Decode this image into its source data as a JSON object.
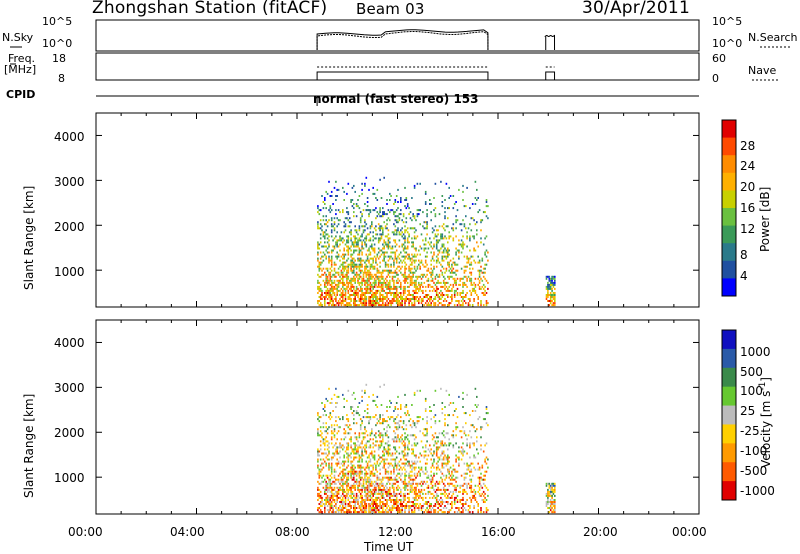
{
  "header": {
    "station": "Zhongshan Station (fitACF)",
    "beam": "Beam 03",
    "date": "30/Apr/2011"
  },
  "status_panels": {
    "nsky_label": "N.Sky",
    "nsearch_label": "N.Search",
    "freq_label_line1": "Freq.",
    "freq_label_line2": "[MHz]",
    "nave_label": "Nave",
    "cpid_label": "CPID",
    "noise_left_ticks": [
      "10^5",
      "10^0"
    ],
    "noise_right_ticks": [
      "10^5",
      "10^0"
    ],
    "freq_left_ticks": [
      "18",
      "8"
    ],
    "freq_right_ticks": [
      "60",
      "0"
    ],
    "cpid_text": "normal (fast stereo) 153"
  },
  "chart_data": [
    {
      "type": "heatmap",
      "name": "power",
      "ylabel": "Slant Range [km]",
      "yticks": [
        "4000",
        "3000",
        "2000",
        "1000"
      ],
      "ylim": [
        180,
        4500
      ],
      "xlim": [
        0,
        24
      ],
      "colorbar": {
        "label": "Power [dB]",
        "ticks": [
          "28",
          "24",
          "20",
          "16",
          "12",
          "8",
          "4"
        ],
        "colors": [
          "#e00000",
          "#ff4a00",
          "#ff8c00",
          "#ffb000",
          "#c8d000",
          "#6ac040",
          "#3a9a58",
          "#2a7a8a",
          "#2050a0",
          "#0000ff"
        ]
      },
      "data_windows": [
        {
          "start_ut": 8.8,
          "end_ut": 15.6,
          "max_range_km": 3100
        },
        {
          "start_ut": 17.9,
          "end_ut": 18.25,
          "max_range_km": 850
        }
      ]
    },
    {
      "type": "heatmap",
      "name": "velocity",
      "ylabel": "Slant Range [km]",
      "yticks": [
        "4000",
        "3000",
        "2000",
        "1000"
      ],
      "ylim": [
        180,
        4500
      ],
      "xlim": [
        0,
        24
      ],
      "colorbar": {
        "label": "Velocity [m s^-1]",
        "label_main": "Velocity [m s",
        "label_sup": "-1",
        "label_end": "]",
        "ticks": [
          "1000",
          "500",
          "100",
          "25",
          "-25",
          "-100",
          "-500",
          "-1000"
        ],
        "colors": [
          "#1010c0",
          "#2a5aa8",
          "#3a8a4a",
          "#66c830",
          "#bcbcbc",
          "#ffd000",
          "#ff9a00",
          "#ff5a00",
          "#e00000"
        ]
      },
      "data_windows": [
        {
          "start_ut": 8.8,
          "end_ut": 15.6,
          "max_range_km": 3100
        },
        {
          "start_ut": 17.9,
          "end_ut": 18.25,
          "max_range_km": 850
        }
      ]
    }
  ],
  "x_axis": {
    "ticks": [
      "00:00",
      "04:00",
      "08:00",
      "12:00",
      "16:00",
      "20:00",
      "00:00"
    ],
    "label": "Time UT"
  }
}
